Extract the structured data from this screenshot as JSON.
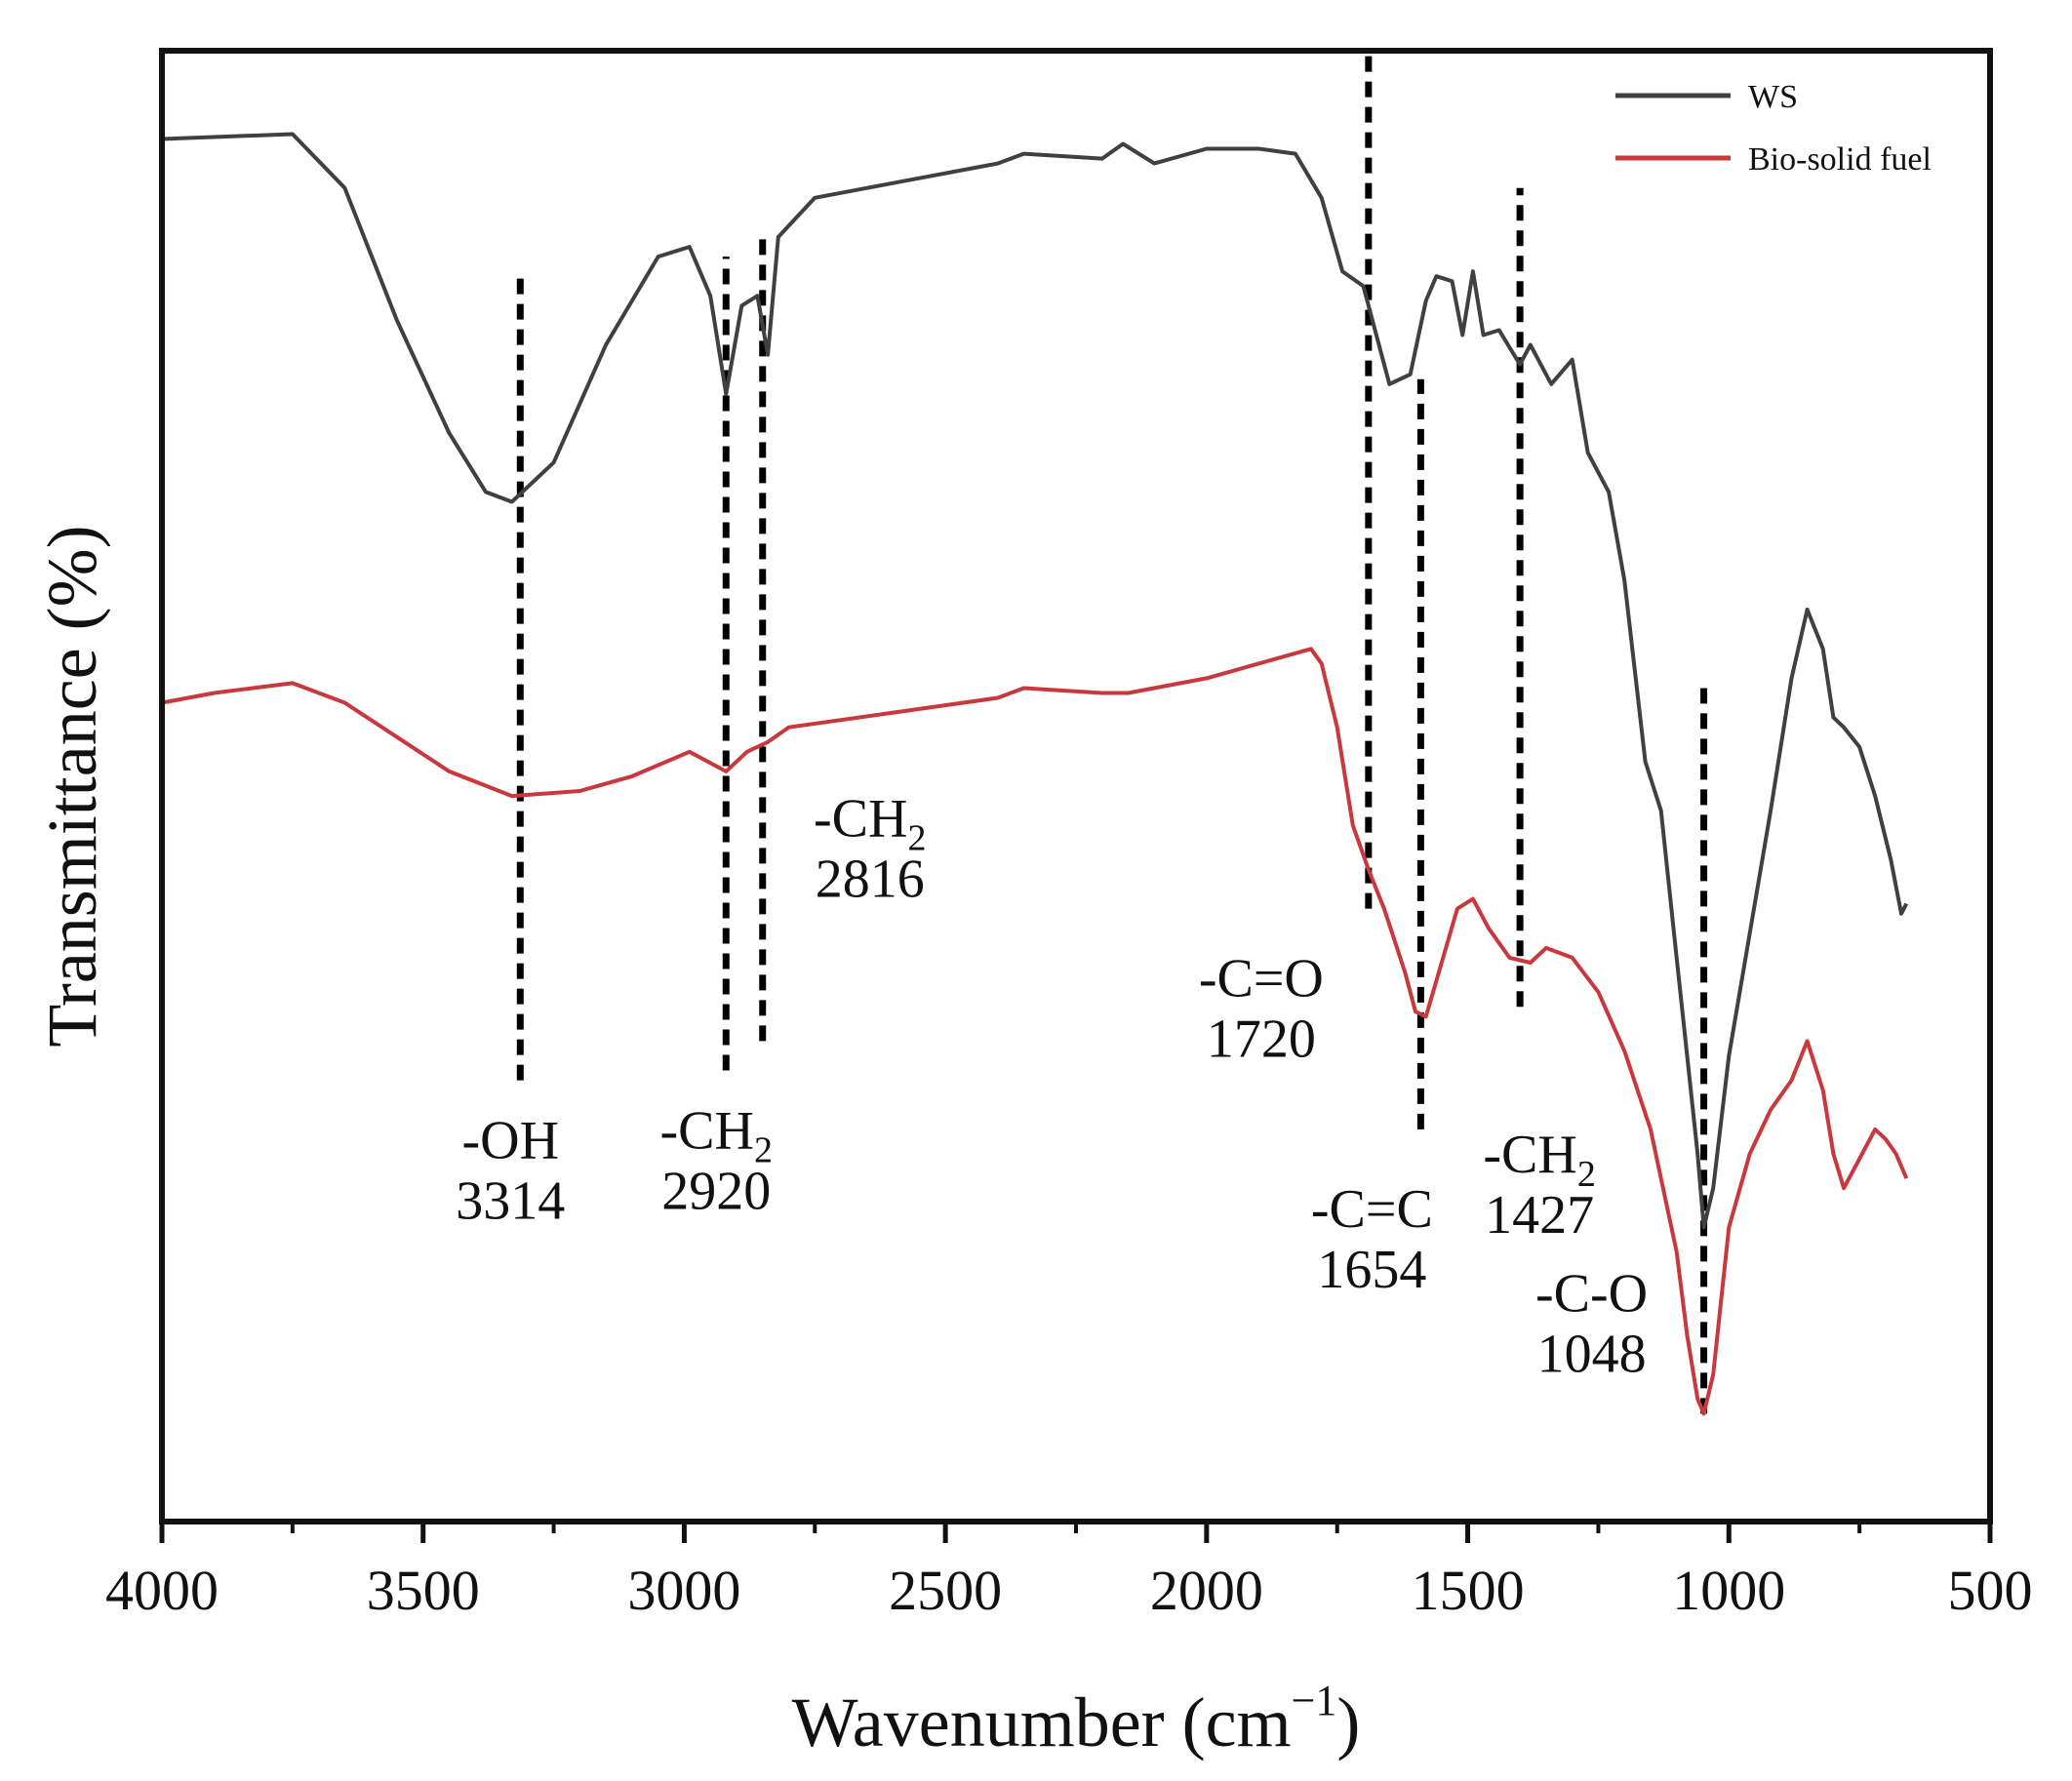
{
  "chart_data": {
    "type": "line",
    "title": "",
    "xlabel": "Wavenumber (cm",
    "xlabel_sup": "−1",
    "xlabel_close": ")",
    "ylabel": "Transmittance (%)",
    "xlim": [
      4000,
      500
    ],
    "ylim": [
      -1.0,
      2.0
    ],
    "x_reversed": true,
    "grid": false,
    "legend_position": "top-right",
    "xticks": [
      4000,
      3500,
      3000,
      2500,
      2000,
      1500,
      1000,
      500
    ],
    "series": [
      {
        "name": "WS",
        "color": "#404040",
        "points": [
          [
            4000,
            1.82
          ],
          [
            3750,
            1.83
          ],
          [
            3650,
            1.72
          ],
          [
            3550,
            1.45
          ],
          [
            3450,
            1.22
          ],
          [
            3380,
            1.1
          ],
          [
            3330,
            1.08
          ],
          [
            3250,
            1.16
          ],
          [
            3150,
            1.4
          ],
          [
            3050,
            1.58
          ],
          [
            2990,
            1.6
          ],
          [
            2950,
            1.5
          ],
          [
            2920,
            1.3
          ],
          [
            2890,
            1.48
          ],
          [
            2860,
            1.5
          ],
          [
            2840,
            1.38
          ],
          [
            2820,
            1.62
          ],
          [
            2750,
            1.7
          ],
          [
            2600,
            1.73
          ],
          [
            2400,
            1.77
          ],
          [
            2350,
            1.79
          ],
          [
            2200,
            1.78
          ],
          [
            2160,
            1.81
          ],
          [
            2100,
            1.77
          ],
          [
            2000,
            1.8
          ],
          [
            1900,
            1.8
          ],
          [
            1830,
            1.79
          ],
          [
            1780,
            1.7
          ],
          [
            1740,
            1.55
          ],
          [
            1700,
            1.52
          ],
          [
            1650,
            1.32
          ],
          [
            1610,
            1.34
          ],
          [
            1580,
            1.49
          ],
          [
            1560,
            1.54
          ],
          [
            1530,
            1.53
          ],
          [
            1510,
            1.42
          ],
          [
            1490,
            1.55
          ],
          [
            1470,
            1.42
          ],
          [
            1440,
            1.43
          ],
          [
            1400,
            1.36
          ],
          [
            1380,
            1.4
          ],
          [
            1340,
            1.32
          ],
          [
            1300,
            1.37
          ],
          [
            1270,
            1.18
          ],
          [
            1230,
            1.1
          ],
          [
            1200,
            0.92
          ],
          [
            1160,
            0.55
          ],
          [
            1130,
            0.45
          ],
          [
            1100,
            0.15
          ],
          [
            1080,
            -0.05
          ],
          [
            1060,
            -0.25
          ],
          [
            1048,
            -0.4
          ],
          [
            1030,
            -0.32
          ],
          [
            1000,
            -0.05
          ],
          [
            960,
            0.2
          ],
          [
            920,
            0.45
          ],
          [
            880,
            0.72
          ],
          [
            850,
            0.86
          ],
          [
            820,
            0.78
          ],
          [
            800,
            0.64
          ],
          [
            780,
            0.62
          ],
          [
            750,
            0.58
          ],
          [
            720,
            0.48
          ],
          [
            690,
            0.35
          ],
          [
            670,
            0.24
          ],
          [
            660,
            0.26
          ]
        ]
      },
      {
        "name": "Bio-solid fuel",
        "color": "#c8383c",
        "points": [
          [
            4000,
            0.67
          ],
          [
            3900,
            0.69
          ],
          [
            3750,
            0.71
          ],
          [
            3650,
            0.67
          ],
          [
            3550,
            0.6
          ],
          [
            3450,
            0.53
          ],
          [
            3330,
            0.48
          ],
          [
            3200,
            0.49
          ],
          [
            3100,
            0.52
          ],
          [
            2990,
            0.57
          ],
          [
            2920,
            0.53
          ],
          [
            2880,
            0.57
          ],
          [
            2840,
            0.59
          ],
          [
            2800,
            0.62
          ],
          [
            2600,
            0.65
          ],
          [
            2400,
            0.68
          ],
          [
            2350,
            0.7
          ],
          [
            2200,
            0.69
          ],
          [
            2150,
            0.69
          ],
          [
            2000,
            0.72
          ],
          [
            1900,
            0.75
          ],
          [
            1800,
            0.78
          ],
          [
            1780,
            0.75
          ],
          [
            1750,
            0.62
          ],
          [
            1720,
            0.42
          ],
          [
            1690,
            0.33
          ],
          [
            1660,
            0.25
          ],
          [
            1620,
            0.12
          ],
          [
            1600,
            0.04
          ],
          [
            1580,
            0.03
          ],
          [
            1550,
            0.14
          ],
          [
            1520,
            0.25
          ],
          [
            1490,
            0.27
          ],
          [
            1460,
            0.21
          ],
          [
            1420,
            0.15
          ],
          [
            1380,
            0.14
          ],
          [
            1350,
            0.17
          ],
          [
            1300,
            0.15
          ],
          [
            1250,
            0.08
          ],
          [
            1200,
            -0.04
          ],
          [
            1150,
            -0.2
          ],
          [
            1100,
            -0.45
          ],
          [
            1080,
            -0.62
          ],
          [
            1060,
            -0.75
          ],
          [
            1048,
            -0.78
          ],
          [
            1030,
            -0.7
          ],
          [
            1000,
            -0.4
          ],
          [
            960,
            -0.25
          ],
          [
            920,
            -0.16
          ],
          [
            880,
            -0.1
          ],
          [
            850,
            -0.02
          ],
          [
            820,
            -0.12
          ],
          [
            800,
            -0.25
          ],
          [
            780,
            -0.32
          ],
          [
            760,
            -0.28
          ],
          [
            740,
            -0.24
          ],
          [
            720,
            -0.2
          ],
          [
            700,
            -0.22
          ],
          [
            680,
            -0.25
          ],
          [
            660,
            -0.3
          ]
        ]
      }
    ],
    "annotations": [
      {
        "group": "-OH",
        "wavenumber": "3314",
        "x": 3314,
        "dash_from": -0.1,
        "dash_to": 1.55
      },
      {
        "group": "-CH",
        "sub": "2",
        "wavenumber": "2920",
        "x": 2920,
        "dash_from": -0.08,
        "dash_to": 1.58
      },
      {
        "group": "-CH",
        "sub": "2",
        "wavenumber": "2816",
        "x": 2850,
        "dash_from": -0.02,
        "dash_to": 1.62
      },
      {
        "group": "-C=O",
        "wavenumber": "1720",
        "x": 1690,
        "dash_from": 0.25,
        "dash_to": 2.0
      },
      {
        "group": "-C=C",
        "wavenumber": "1654",
        "x": 1590,
        "dash_from": -0.2,
        "dash_to": 1.33
      },
      {
        "group": "-CH",
        "sub": "2",
        "wavenumber": "1427",
        "x": 1400,
        "dash_from": 0.05,
        "dash_to": 1.72
      },
      {
        "group": "-C-O",
        "wavenumber": "1048",
        "x": 1048,
        "dash_from": -0.78,
        "dash_to": 0.7
      }
    ]
  }
}
